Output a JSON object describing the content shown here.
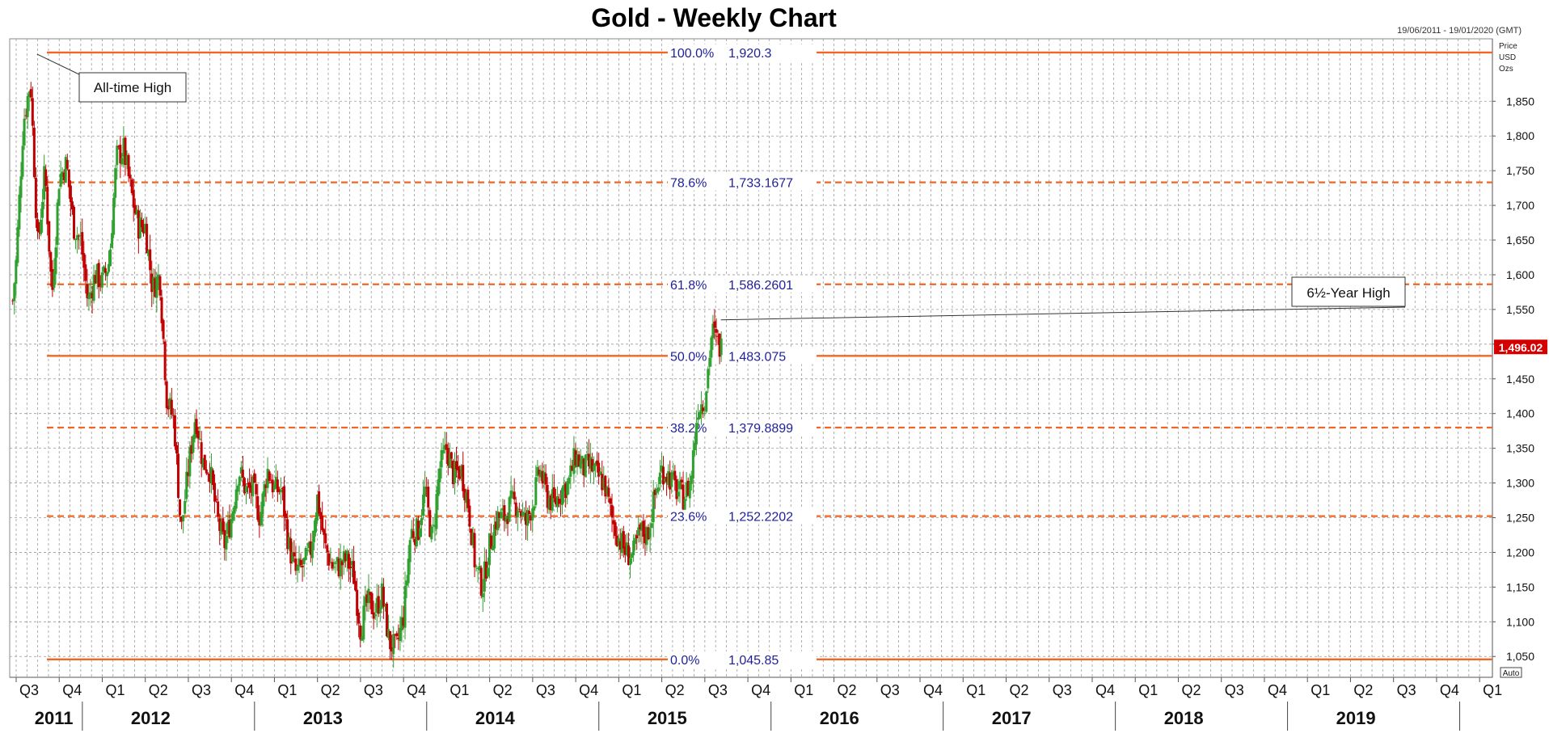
{
  "chart_data": {
    "type": "candlestick",
    "title": "Gold - Weekly Chart",
    "date_range": "19/06/2011 - 19/01/2020 (GMT)",
    "price_axis_header": [
      "Price",
      "USD",
      "Ozs"
    ],
    "auto_label": "Auto",
    "ylim": [
      1020,
      1940
    ],
    "y_ticks": [
      1050,
      1100,
      1150,
      1200,
      1250,
      1300,
      1350,
      1400,
      1450,
      1500,
      1550,
      1600,
      1650,
      1700,
      1750,
      1800,
      1850
    ],
    "y_tick_labels": [
      "1,050",
      "1,100",
      "1,150",
      "1,200",
      "1,250",
      "1,300",
      "1,350",
      "1,400",
      "1,450",
      "1,500",
      "1,550",
      "1,600",
      "1,650",
      "1,700",
      "1,750",
      "1,800",
      "1,850"
    ],
    "last_price": "1,496.02",
    "grid": true,
    "colors": {
      "up": "#2ea02e",
      "down": "#c00000",
      "fib_line": "#f26522",
      "fib_text": "#1f1f9c",
      "last_price_bg": "#d40000"
    },
    "quarters": [
      {
        "label": "Q3",
        "idx": 0
      },
      {
        "label": "Q4",
        "idx": 2
      },
      {
        "label": "Q1",
        "idx": 4
      },
      {
        "label": "Q2",
        "idx": 6
      },
      {
        "label": "Q3",
        "idx": 8
      },
      {
        "label": "Q4",
        "idx": 10
      },
      {
        "label": "Q1",
        "idx": 12
      },
      {
        "label": "Q2",
        "idx": 14
      },
      {
        "label": "Q3",
        "idx": 16
      },
      {
        "label": "Q4",
        "idx": 18
      },
      {
        "label": "Q1",
        "idx": 20
      },
      {
        "label": "Q2",
        "idx": 22
      },
      {
        "label": "Q3",
        "idx": 24
      },
      {
        "label": "Q4",
        "idx": 26
      },
      {
        "label": "Q1",
        "idx": 28
      },
      {
        "label": "Q2",
        "idx": 30
      },
      {
        "label": "Q3",
        "idx": 32
      },
      {
        "label": "Q4",
        "idx": 34
      },
      {
        "label": "Q1",
        "idx": 36
      },
      {
        "label": "Q2",
        "idx": 38
      },
      {
        "label": "Q3",
        "idx": 40
      },
      {
        "label": "Q4",
        "idx": 42
      },
      {
        "label": "Q1",
        "idx": 44
      },
      {
        "label": "Q2",
        "idx": 46
      },
      {
        "label": "Q3",
        "idx": 48
      },
      {
        "label": "Q4",
        "idx": 50
      },
      {
        "label": "Q1",
        "idx": 52
      },
      {
        "label": "Q2",
        "idx": 54
      },
      {
        "label": "Q3",
        "idx": 56
      },
      {
        "label": "Q4",
        "idx": 58
      },
      {
        "label": "Q1",
        "idx": 60
      },
      {
        "label": "Q2",
        "idx": 62
      },
      {
        "label": "Q3",
        "idx": 64
      },
      {
        "label": "Q4",
        "idx": 66
      },
      {
        "label": "Q1",
        "idx": 68
      }
    ],
    "years": [
      {
        "label": "2011",
        "idx": 1
      },
      {
        "label": "2012",
        "idx": 5.5
      },
      {
        "label": "2013",
        "idx": 13.5
      },
      {
        "label": "2014",
        "idx": 21.5
      },
      {
        "label": "2015",
        "idx": 29.5
      },
      {
        "label": "2016",
        "idx": 37.5
      },
      {
        "label": "2017",
        "idx": 45.5
      },
      {
        "label": "2018",
        "idx": 53.5
      },
      {
        "label": "2019",
        "idx": 61.5
      }
    ],
    "year_dividers": [
      3,
      11,
      19,
      27,
      35,
      43,
      51,
      59,
      67
    ],
    "fib_levels": [
      {
        "pct": "100.0%",
        "value": 1920.3,
        "value_label": "1,920.3",
        "style": "solid"
      },
      {
        "pct": "78.6%",
        "value": 1733.1677,
        "value_label": "1,733.1677",
        "style": "dashed"
      },
      {
        "pct": "61.8%",
        "value": 1586.2601,
        "value_label": "1,586.2601",
        "style": "dashed"
      },
      {
        "pct": "50.0%",
        "value": 1483.075,
        "value_label": "1,483.075",
        "style": "solid"
      },
      {
        "pct": "38.2%",
        "value": 1379.8899,
        "value_label": "1,379.8899",
        "style": "dashed"
      },
      {
        "pct": "23.6%",
        "value": 1252.2202,
        "value_label": "1,252.2202",
        "style": "dashed"
      },
      {
        "pct": "0.0%",
        "value": 1045.85,
        "value_label": "1,045.85",
        "style": "solid"
      }
    ],
    "annotations": [
      {
        "text": "All-time High",
        "date": "2011-09",
        "value": 1920.3
      },
      {
        "text": "6½-Year High",
        "date": "2019-09",
        "value": 1535
      }
    ],
    "series": [
      {
        "date": "2011-06",
        "close": 1500
      },
      {
        "date": "2011-07",
        "close": 1620
      },
      {
        "date": "2011-08",
        "close": 1820
      },
      {
        "date": "2011-09",
        "close": 1880
      },
      {
        "date": "2011-10",
        "close": 1640
      },
      {
        "date": "2011-11",
        "close": 1750
      },
      {
        "date": "2011-12",
        "close": 1570
      },
      {
        "date": "2012-01",
        "close": 1740
      },
      {
        "date": "2012-02",
        "close": 1760
      },
      {
        "date": "2012-03",
        "close": 1670
      },
      {
        "date": "2012-04",
        "close": 1650
      },
      {
        "date": "2012-05",
        "close": 1560
      },
      {
        "date": "2012-06",
        "close": 1600
      },
      {
        "date": "2012-07",
        "close": 1590
      },
      {
        "date": "2012-08",
        "close": 1620
      },
      {
        "date": "2012-09",
        "close": 1770
      },
      {
        "date": "2012-10",
        "close": 1780
      },
      {
        "date": "2012-11",
        "close": 1720
      },
      {
        "date": "2012-12",
        "close": 1670
      },
      {
        "date": "2013-01",
        "close": 1670
      },
      {
        "date": "2013-02",
        "close": 1580
      },
      {
        "date": "2013-03",
        "close": 1600
      },
      {
        "date": "2013-04",
        "close": 1420
      },
      {
        "date": "2013-05",
        "close": 1390
      },
      {
        "date": "2013-06",
        "close": 1230
      },
      {
        "date": "2013-07",
        "close": 1320
      },
      {
        "date": "2013-08",
        "close": 1400
      },
      {
        "date": "2013-09",
        "close": 1330
      },
      {
        "date": "2013-10",
        "close": 1320
      },
      {
        "date": "2013-11",
        "close": 1250
      },
      {
        "date": "2013-12",
        "close": 1210
      },
      {
        "date": "2014-01",
        "close": 1250
      },
      {
        "date": "2014-02",
        "close": 1320
      },
      {
        "date": "2014-03",
        "close": 1290
      },
      {
        "date": "2014-04",
        "close": 1290
      },
      {
        "date": "2014-05",
        "close": 1250
      },
      {
        "date": "2014-06",
        "close": 1320
      },
      {
        "date": "2014-07",
        "close": 1290
      },
      {
        "date": "2014-08",
        "close": 1290
      },
      {
        "date": "2014-09",
        "close": 1210
      },
      {
        "date": "2014-10",
        "close": 1170
      },
      {
        "date": "2014-11",
        "close": 1180
      },
      {
        "date": "2014-12",
        "close": 1200
      },
      {
        "date": "2015-01",
        "close": 1280
      },
      {
        "date": "2015-02",
        "close": 1210
      },
      {
        "date": "2015-03",
        "close": 1180
      },
      {
        "date": "2015-04",
        "close": 1180
      },
      {
        "date": "2015-05",
        "close": 1190
      },
      {
        "date": "2015-06",
        "close": 1170
      },
      {
        "date": "2015-07",
        "close": 1090
      },
      {
        "date": "2015-08",
        "close": 1130
      },
      {
        "date": "2015-09",
        "close": 1115
      },
      {
        "date": "2015-10",
        "close": 1140
      },
      {
        "date": "2015-11",
        "close": 1070
      },
      {
        "date": "2015-12",
        "close": 1060
      },
      {
        "date": "2016-01",
        "close": 1110
      },
      {
        "date": "2016-02",
        "close": 1230
      },
      {
        "date": "2016-03",
        "close": 1230
      },
      {
        "date": "2016-04",
        "close": 1290
      },
      {
        "date": "2016-05",
        "close": 1215
      },
      {
        "date": "2016-06",
        "close": 1320
      },
      {
        "date": "2016-07",
        "close": 1350
      },
      {
        "date": "2016-08",
        "close": 1310
      },
      {
        "date": "2016-09",
        "close": 1320
      },
      {
        "date": "2016-10",
        "close": 1270
      },
      {
        "date": "2016-11",
        "close": 1180
      },
      {
        "date": "2016-12",
        "close": 1150
      },
      {
        "date": "2017-01",
        "close": 1210
      },
      {
        "date": "2017-02",
        "close": 1250
      },
      {
        "date": "2017-03",
        "close": 1250
      },
      {
        "date": "2017-04",
        "close": 1270
      },
      {
        "date": "2017-05",
        "close": 1270
      },
      {
        "date": "2017-06",
        "close": 1240
      },
      {
        "date": "2017-07",
        "close": 1270
      },
      {
        "date": "2017-08",
        "close": 1320
      },
      {
        "date": "2017-09",
        "close": 1280
      },
      {
        "date": "2017-10",
        "close": 1270
      },
      {
        "date": "2017-11",
        "close": 1290
      },
      {
        "date": "2017-12",
        "close": 1300
      },
      {
        "date": "2018-01",
        "close": 1340
      },
      {
        "date": "2018-02",
        "close": 1320
      },
      {
        "date": "2018-03",
        "close": 1325
      },
      {
        "date": "2018-04",
        "close": 1310
      },
      {
        "date": "2018-05",
        "close": 1300
      },
      {
        "date": "2018-06",
        "close": 1250
      },
      {
        "date": "2018-07",
        "close": 1220
      },
      {
        "date": "2018-08",
        "close": 1200
      },
      {
        "date": "2018-09",
        "close": 1195
      },
      {
        "date": "2018-10",
        "close": 1230
      },
      {
        "date": "2018-11",
        "close": 1225
      },
      {
        "date": "2018-12",
        "close": 1280
      },
      {
        "date": "2019-01",
        "close": 1320
      },
      {
        "date": "2019-02",
        "close": 1310
      },
      {
        "date": "2019-03",
        "close": 1290
      },
      {
        "date": "2019-04",
        "close": 1280
      },
      {
        "date": "2019-05",
        "close": 1300
      },
      {
        "date": "2019-06",
        "close": 1410
      },
      {
        "date": "2019-07",
        "close": 1420
      },
      {
        "date": "2019-08",
        "close": 1520
      },
      {
        "date": "2019-09",
        "close": 1496
      }
    ]
  }
}
